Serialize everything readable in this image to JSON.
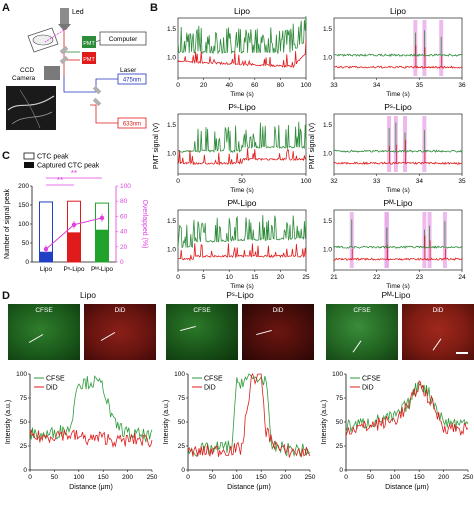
{
  "panels": {
    "a": "A",
    "b": "B",
    "c": "C",
    "d": "D"
  },
  "schematic": {
    "led": "Led",
    "computer": "Computer",
    "pmt": "PMT",
    "ccd": "CCD",
    "camera": "Camera",
    "laser": "Laser",
    "l475": "475nm",
    "l633": "633nm"
  },
  "panel_b": {
    "ylabel": "PMT signal (V)",
    "xlabel": "Time (s)",
    "rows": [
      {
        "left_title": "Lipo",
        "right_title": "Lipo",
        "left_x": [
          "0",
          "20",
          "40",
          "60",
          "80",
          "100"
        ],
        "right_x": [
          "33",
          "34",
          "35",
          "36"
        ],
        "left_y": [
          "1.0",
          "1.5"
        ],
        "right_y": [
          "1.0",
          "1.5"
        ]
      },
      {
        "left_title": "Pˢ-Lipo",
        "right_title": "Pˢ-Lipo",
        "left_x": [
          "0",
          "50",
          "100"
        ],
        "right_x": [
          "32",
          "33",
          "34",
          "35"
        ],
        "left_y": [
          "1.0",
          "1.5"
        ],
        "right_y": [
          "1.0",
          "1.5"
        ]
      },
      {
        "left_title": "Pᴹ-Lipo",
        "right_title": "Pᴹ-Lipo",
        "left_x": [
          "0",
          "5",
          "10",
          "15",
          "20",
          "25"
        ],
        "right_x": [
          "21",
          "22",
          "23",
          "24"
        ],
        "left_y": [
          "1.0",
          "1.5"
        ],
        "right_y": [
          "1.0",
          "1.5"
        ]
      }
    ],
    "colors": {
      "green": "#2e8b3a",
      "red": "#e01b1b",
      "highlight": "#e8a3e8"
    }
  },
  "chart_data": [
    {
      "type": "bar",
      "legend": [
        "CTC peak",
        "Captured CTC peak"
      ],
      "categories": [
        "Lipo",
        "Pˢ-Lipo",
        "Pᴹ-Lipo"
      ],
      "series": [
        {
          "name": "CTC peak",
          "values": [
            158,
            160,
            155
          ]
        },
        {
          "name": "Captured CTC peak",
          "values": [
            27,
            78,
            85
          ]
        }
      ],
      "overlapped_percent": [
        17,
        49,
        58
      ],
      "ylabel": "Number of signal peak",
      "y2label": "Overlapped (%)",
      "ylim": [
        0,
        200
      ],
      "y2lim": [
        0,
        100
      ],
      "yticks": [
        "0",
        "50",
        "100",
        "150",
        "200"
      ],
      "y2ticks": [
        "0",
        "20",
        "40",
        "60",
        "80",
        "100"
      ],
      "significance": [
        "**",
        "**"
      ],
      "bar_colors": [
        "#1f3fc4",
        "#e01b1b",
        "#21a22b"
      ],
      "line_color": "#e040e0"
    },
    {
      "type": "line",
      "title": "Lipo",
      "legend": [
        "CFSE",
        "DiD"
      ],
      "xlabel": "Distance (μm)",
      "ylabel": "Intensity (a.u.)",
      "xlim": [
        0,
        250
      ],
      "ylim": [
        0,
        100
      ],
      "xticks": [
        "0",
        "50",
        "100",
        "150",
        "200",
        "250"
      ],
      "yticks": [
        "0",
        "25",
        "50",
        "75",
        "100"
      ],
      "series": [
        {
          "name": "CFSE",
          "points": [
            [
              0,
              38
            ],
            [
              30,
              36
            ],
            [
              60,
              40
            ],
            [
              85,
              45
            ],
            [
              95,
              90
            ],
            [
              130,
              92
            ],
            [
              150,
              88
            ],
            [
              170,
              50
            ],
            [
              200,
              38
            ],
            [
              250,
              35
            ]
          ]
        },
        {
          "name": "DiD",
          "points": [
            [
              0,
              35
            ],
            [
              30,
              34
            ],
            [
              60,
              38
            ],
            [
              90,
              36
            ],
            [
              120,
              32
            ],
            [
              150,
              34
            ],
            [
              180,
              30
            ],
            [
              220,
              32
            ],
            [
              250,
              30
            ]
          ]
        }
      ]
    },
    {
      "type": "line",
      "title": "Pˢ-Lipo",
      "legend": [
        "CFSE",
        "DiD"
      ],
      "xlabel": "Distance (μm)",
      "ylabel": "Intensity (a.u.)",
      "xlim": [
        0,
        250
      ],
      "ylim": [
        0,
        100
      ],
      "xticks": [
        "0",
        "50",
        "100",
        "150",
        "200",
        "250"
      ],
      "yticks": [
        "0",
        "25",
        "50",
        "75",
        "100"
      ],
      "series": [
        {
          "name": "CFSE",
          "points": [
            [
              0,
              20
            ],
            [
              50,
              22
            ],
            [
              90,
              25
            ],
            [
              100,
              90
            ],
            [
              120,
              95
            ],
            [
              160,
              95
            ],
            [
              170,
              25
            ],
            [
              200,
              22
            ],
            [
              250,
              20
            ]
          ]
        },
        {
          "name": "DiD",
          "points": [
            [
              0,
              18
            ],
            [
              50,
              20
            ],
            [
              110,
              22
            ],
            [
              130,
              96
            ],
            [
              150,
              98
            ],
            [
              160,
              40
            ],
            [
              190,
              20
            ],
            [
              250,
              18
            ]
          ]
        }
      ]
    },
    {
      "type": "line",
      "title": "Pᴹ-Lipo",
      "legend": [
        "CFSE",
        "DiD"
      ],
      "xlabel": "Distance (μm)",
      "ylabel": "Intensity (a.u.)",
      "xlim": [
        0,
        250
      ],
      "ylim": [
        0,
        100
      ],
      "xticks": [
        "0",
        "50",
        "100",
        "150",
        "200",
        "250"
      ],
      "yticks": [
        "0",
        "25",
        "50",
        "75",
        "100"
      ],
      "series": [
        {
          "name": "CFSE",
          "points": [
            [
              0,
              45
            ],
            [
              50,
              50
            ],
            [
              100,
              55
            ],
            [
              130,
              70
            ],
            [
              150,
              92
            ],
            [
              170,
              80
            ],
            [
              200,
              50
            ],
            [
              250,
              48
            ]
          ]
        },
        {
          "name": "DiD",
          "points": [
            [
              0,
              42
            ],
            [
              50,
              46
            ],
            [
              100,
              52
            ],
            [
              130,
              68
            ],
            [
              150,
              90
            ],
            [
              170,
              75
            ],
            [
              200,
              45
            ],
            [
              250,
              42
            ]
          ]
        }
      ]
    }
  ],
  "panel_d": {
    "titles": [
      "Lipo",
      "Pˢ-Lipo",
      "Pᴹ-Lipo"
    ],
    "channels": [
      "CFSE",
      "DiD"
    ]
  }
}
